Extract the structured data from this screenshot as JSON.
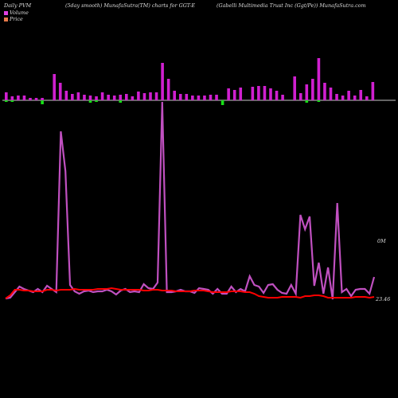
{
  "header": {
    "left": "Daily PVM",
    "center": "(5day smooth) MunafaSutra(TM) charts for GGT-E",
    "right": "(Gabelli  Multimedia  Trust Inc (Ggt/Pe)) MunafaSutra.com"
  },
  "legend": [
    {
      "label": "Volume",
      "color": "#e040e0"
    },
    {
      "label": "Price",
      "color": "#e87a4a"
    }
  ],
  "colors": {
    "volume_up": "#d020d0",
    "volume_down": "#18e018",
    "volume_line": "#c050c0",
    "price_line": "#ff0000",
    "zero_line": "#c8c8c8"
  },
  "chart_data": {
    "type": "bar+line",
    "volume_bars": {
      "up": [
        10,
        5,
        6,
        6,
        3,
        3,
        3,
        0,
        33,
        22,
        12,
        8,
        10,
        7,
        6,
        5,
        10,
        7,
        6,
        7,
        8,
        5,
        11,
        9,
        10,
        10,
        47,
        27,
        12,
        8,
        8,
        6,
        6,
        6,
        7,
        7,
        0,
        15,
        13,
        16,
        0,
        17,
        18,
        18,
        15,
        12,
        7,
        0,
        30,
        9,
        20,
        27,
        53,
        22,
        16,
        8,
        6,
        12,
        6,
        13,
        5,
        23
      ],
      "down": [
        2,
        2,
        0,
        0,
        0,
        0,
        5,
        0,
        0,
        0,
        0,
        0,
        0,
        0,
        3,
        2,
        0,
        0,
        0,
        3,
        0,
        0,
        0,
        0,
        0,
        0,
        0,
        0,
        0,
        0,
        0,
        0,
        0,
        0,
        0,
        0,
        6,
        0,
        0,
        0,
        0,
        0,
        0,
        0,
        0,
        0,
        0,
        0,
        0,
        0,
        3,
        0,
        2,
        0,
        0,
        0,
        0,
        0,
        0,
        0,
        0,
        0
      ]
    },
    "volume_line": [
      95,
      96,
      103,
      110,
      107,
      105,
      103,
      107,
      103,
      111,
      107,
      103,
      305,
      255,
      112,
      104,
      101,
      104,
      105,
      103,
      104,
      104,
      106,
      104,
      100,
      105,
      107,
      103,
      104,
      103,
      113,
      108,
      107,
      115,
      342,
      103,
      103,
      104,
      106,
      104,
      104,
      102,
      108,
      107,
      106,
      101,
      107,
      101,
      101,
      110,
      103,
      107,
      104,
      123,
      112,
      110,
      102,
      112,
      113,
      106,
      102,
      101,
      112,
      101,
      200,
      182,
      198,
      111,
      140,
      101,
      134,
      94,
      215,
      103,
      107,
      98,
      106,
      107,
      107,
      101,
      122
    ],
    "price_line": [
      95,
      99,
      106,
      106,
      105,
      105,
      104,
      104,
      104,
      106,
      106,
      105,
      106,
      106,
      106,
      107,
      106,
      106,
      106,
      106,
      107,
      107,
      107,
      108,
      107,
      106,
      106,
      106,
      106,
      106,
      105,
      105,
      106,
      106,
      105,
      105,
      105,
      104,
      104,
      104,
      104,
      105,
      105,
      105,
      104,
      103,
      103,
      103,
      103,
      104,
      104,
      104,
      103,
      103,
      101,
      98,
      97,
      96,
      96,
      96,
      97,
      97,
      97,
      97,
      96,
      98,
      98,
      99,
      99,
      98,
      96,
      96,
      96,
      96,
      96,
      96,
      97,
      97,
      97,
      96,
      97
    ],
    "annotations": [
      "0M",
      "23.46"
    ]
  }
}
